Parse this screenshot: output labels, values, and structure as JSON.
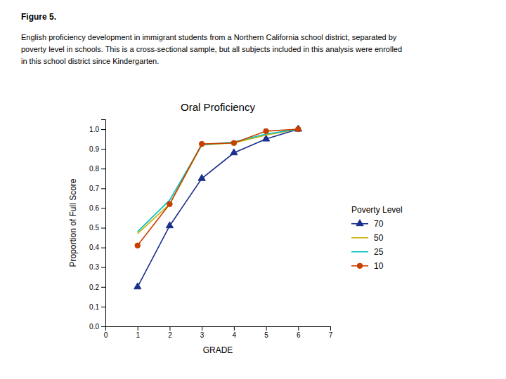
{
  "chart_data": {
    "type": "line",
    "title": "Oral Proficiency",
    "x_label": "GRADE",
    "y_label": "Proportion of Full Score",
    "annotations": [
      "Figure 5.",
      "English proficiency development in immigrant students from a Northern California school district, separated by",
      "poverty level in schools.  This is a cross-sectional sample, but all subjects included in this analysis were enrolled",
      "in this school district since Kindergarten."
    ],
    "legend_title": "Poverty Level",
    "legend": "right",
    "grid": false,
    "xlim": [
      0,
      7
    ],
    "xticks": [
      0,
      1,
      2,
      3,
      4,
      5,
      6,
      7
    ],
    "ylim": [
      0.0,
      1.05
    ],
    "yticks": [
      {
        "value": 0.0,
        "label": "0.0"
      },
      0.1,
      0.2,
      0.3,
      0.4,
      0.5,
      0.6,
      0.7,
      0.8,
      0.9,
      {
        "value": 1.0,
        "label": "1.0"
      }
    ],
    "x": [
      1,
      2,
      3,
      4,
      5,
      6
    ],
    "series": [
      {
        "name": "70",
        "color": "#1a2e8c",
        "marker": "triangle",
        "line_style": "solid",
        "values": [
          0.2,
          0.51,
          0.75,
          0.88,
          0.95,
          1.0
        ]
      },
      {
        "name": "50",
        "color": "#c8b000",
        "line_style": "solid",
        "values": [
          0.47,
          0.62,
          0.92,
          0.93,
          0.97,
          1.0
        ]
      },
      {
        "name": "25",
        "color": "#00c0c0",
        "line_style": "solid",
        "values": [
          0.48,
          0.64,
          0.92,
          0.935,
          0.975,
          1.0
        ]
      },
      {
        "name": "10",
        "color": "#c84000",
        "marker": "circle",
        "line_style": "solid",
        "values": [
          0.41,
          0.62,
          0.925,
          0.93,
          0.99,
          1.0
        ]
      }
    ]
  }
}
